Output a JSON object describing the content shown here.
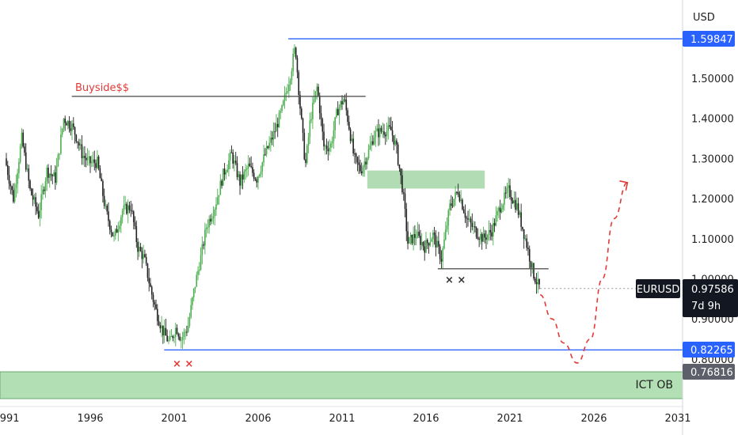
{
  "currency_label": "USD",
  "symbol": "EURUSD",
  "countdown": "7d 9h",
  "price_badges": {
    "high": "1.59847",
    "current": "0.97586",
    "low": "0.82265",
    "ob": "0.76816"
  },
  "annotations": {
    "buyside": "Buyside$$",
    "ict_ob": "ICT OB",
    "cross_left": "× ×",
    "cross_right": "× ×"
  },
  "colors": {
    "up": "#4caf50",
    "down": "#222222",
    "blue_line": "#2962ff",
    "zone": "#a5d6a7",
    "ob_zone": "#b2dfb4",
    "forecast": "#e53935",
    "badge_dark": "#131722",
    "buyside_text": "#e53935"
  },
  "chart_data": {
    "type": "line",
    "title": "",
    "xlabel": "",
    "ylabel": "",
    "ylim": [
      0.7,
      1.67
    ],
    "y_ticks": [
      "1.50000",
      "1.40000",
      "1.30000",
      "1.20000",
      "1.10000",
      "1.00000",
      "0.90000",
      "0.80000"
    ],
    "x_ticks": [
      "1991",
      "1996",
      "2001",
      "2006",
      "2011",
      "2016",
      "2021",
      "2026",
      "2031"
    ],
    "series": [
      {
        "x": [
          1991.0,
          1991.5,
          1992.0,
          1992.5,
          1993.0,
          1993.5,
          1994.0,
          1994.5,
          1995.0,
          1995.3,
          1995.6,
          1996.0,
          1996.5,
          1997.0,
          1997.5,
          1998.0,
          1998.5,
          1998.9,
          1999.3,
          1999.7,
          2000.0,
          2000.4,
          2000.8,
          2001.2,
          2001.5,
          2001.9,
          2002.3,
          2002.7,
          2003.0,
          2003.5,
          2004.0,
          2004.5,
          2005.0,
          2005.5,
          2006.0,
          2006.5,
          2007.0,
          2007.5,
          2008.0,
          2008.3,
          2008.6,
          2008.9,
          2009.2,
          2009.6,
          2010.0,
          2010.4,
          2010.8,
          2011.2,
          2011.5,
          2011.8,
          2012.2,
          2012.6,
          2013.0,
          2013.5,
          2014.0,
          2014.3,
          2014.7,
          2015.0,
          2015.5,
          2016.0,
          2016.5,
          2017.0,
          2017.5,
          2018.0,
          2018.5,
          2019.0,
          2019.5,
          2020.0,
          2020.5,
          2021.0,
          2021.5,
          2022.0,
          2022.5,
          2022.8
        ],
        "values": [
          1.3,
          1.2,
          1.35,
          1.22,
          1.16,
          1.27,
          1.25,
          1.4,
          1.38,
          1.35,
          1.31,
          1.29,
          1.29,
          1.17,
          1.1,
          1.17,
          1.18,
          1.08,
          1.05,
          0.97,
          0.92,
          0.87,
          0.84,
          0.88,
          0.85,
          0.88,
          0.98,
          1.06,
          1.13,
          1.18,
          1.26,
          1.31,
          1.24,
          1.28,
          1.25,
          1.31,
          1.36,
          1.42,
          1.51,
          1.58,
          1.42,
          1.28,
          1.4,
          1.48,
          1.33,
          1.33,
          1.42,
          1.45,
          1.38,
          1.3,
          1.27,
          1.31,
          1.36,
          1.37,
          1.37,
          1.33,
          1.22,
          1.09,
          1.11,
          1.08,
          1.11,
          1.05,
          1.18,
          1.22,
          1.15,
          1.12,
          1.1,
          1.12,
          1.18,
          1.22,
          1.18,
          1.1,
          1.01,
          0.98
        ]
      }
    ],
    "levels": {
      "high": 1.59847,
      "current": 0.97586,
      "low": 0.82265,
      "ob_top": 0.7681,
      "ob_bottom": 0.7,
      "buyside": 1.455,
      "equal_lows": 1.025
    },
    "supply_zone": {
      "x0": 2012.5,
      "x1": 2019.5,
      "y0": 1.225,
      "y1": 1.27
    },
    "forecast_path": {
      "x": [
        2022.8,
        2023.5,
        2024.2,
        2025.0,
        2025.8,
        2026.5,
        2027.2,
        2028.0
      ],
      "values": [
        0.96,
        0.9,
        0.84,
        0.79,
        0.85,
        1.0,
        1.15,
        1.24
      ]
    },
    "grid": false,
    "legend": "none"
  }
}
